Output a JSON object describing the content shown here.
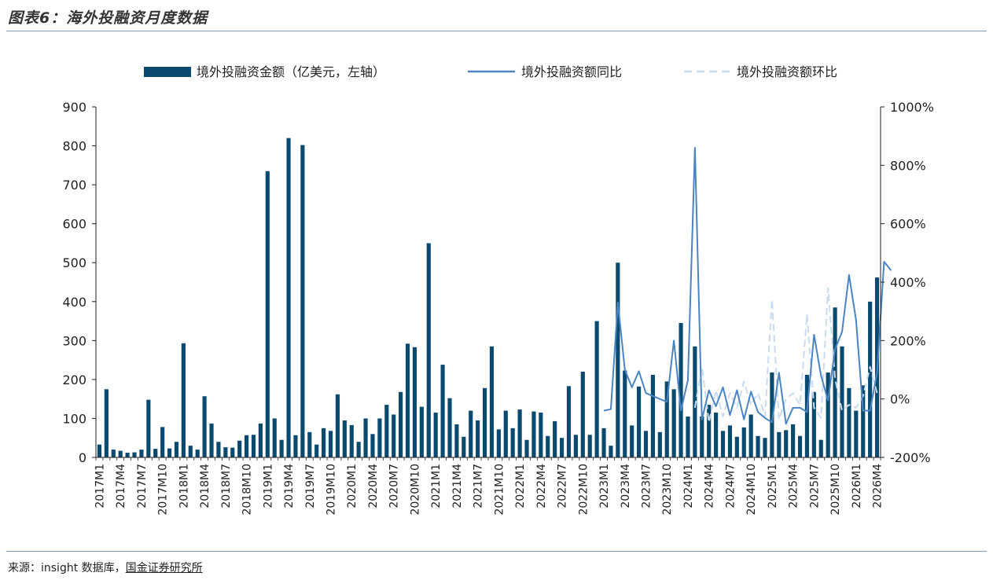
{
  "title": "图表6：海外投融资月度数据",
  "source": {
    "prefix": "来源：insight 数据库，",
    "org": "国金证券研究所"
  },
  "colors": {
    "bar": "#0b4a6f",
    "yoy": "#4a85c2",
    "mom": "#c9dcef",
    "axis": "#222222"
  },
  "chart_data": {
    "type": "bar",
    "legend_position": "top",
    "grid": false,
    "legend": {
      "bar": "境外投融资金额（亿美元，左轴）",
      "yoy": "境外投融资额同比",
      "mom": "境外投融资额环比"
    },
    "y_left": {
      "min": 0,
      "max": 900,
      "ticks": [
        "0",
        "100",
        "200",
        "300",
        "400",
        "500",
        "600",
        "700",
        "800",
        "900"
      ]
    },
    "y_right": {
      "min": -200,
      "max": 1000,
      "ticks": [
        "-200%",
        "0%",
        "200%",
        "400%",
        "600%",
        "800%",
        "1000%"
      ]
    },
    "x_tick_labels": [
      "2017M1",
      "2017M4",
      "2017M7",
      "2017M10",
      "2018M1",
      "2018M4",
      "2018M7",
      "2018M10",
      "2019M1",
      "2019M4",
      "2019M7",
      "2019M10",
      "2020M1",
      "2020M4",
      "2020M7",
      "2020M10",
      "2021M1",
      "2021M4",
      "2021M7",
      "2021M10",
      "2022M1",
      "2022M4",
      "2022M7",
      "2022M10",
      "2023M1",
      "2023M4",
      "2023M7",
      "2023M10",
      "2024M1",
      "2024M4",
      "2024M7",
      "2024M10",
      "2025M1",
      "2025M4",
      "2025M7",
      "2025M10",
      "2026M1",
      "2026M4"
    ],
    "series": [
      {
        "key": "bar",
        "values": [
          33,
          175,
          20,
          17,
          12,
          13,
          20,
          148,
          22,
          78,
          23,
          40,
          293,
          30,
          20,
          157,
          87,
          40,
          26,
          25,
          43,
          57,
          58,
          87,
          735,
          100,
          45,
          820,
          57,
          802,
          65,
          33,
          75,
          68,
          162,
          95,
          83,
          40,
          100,
          60,
          100,
          135,
          110,
          168,
          292,
          283,
          130,
          550,
          115,
          238,
          152,
          85,
          53,
          120,
          95,
          178,
          285,
          72,
          120,
          75,
          123,
          45,
          118,
          115,
          55,
          93,
          50,
          183,
          58,
          220,
          58,
          350,
          75,
          30,
          500,
          223,
          82,
          182,
          68,
          212,
          65,
          195,
          175,
          345,
          105,
          285,
          105,
          135,
          115,
          68,
          82,
          53,
          77,
          110,
          55,
          50,
          218,
          65,
          70,
          85,
          55,
          212,
          168,
          45,
          218,
          385,
          285,
          178,
          120,
          185,
          400,
          462
        ]
      },
      {
        "key": "yoy",
        "values": [
          null,
          null,
          null,
          null,
          null,
          null,
          null,
          null,
          null,
          null,
          null,
          null,
          null,
          null,
          null,
          null,
          null,
          null,
          null,
          null,
          null,
          null,
          null,
          null,
          null,
          null,
          null,
          null,
          null,
          null,
          null,
          null,
          null,
          null,
          null,
          null,
          null,
          null,
          null,
          null,
          null,
          null,
          null,
          null,
          null,
          null,
          null,
          null,
          null,
          null,
          null,
          null,
          null,
          null,
          null,
          null,
          null,
          null,
          null,
          null,
          null,
          null,
          null,
          null,
          null,
          null,
          null,
          null,
          null,
          null,
          null,
          null,
          -40,
          -35,
          330,
          100,
          40,
          95,
          20,
          10,
          0,
          -10,
          200,
          -40,
          65,
          860,
          -70,
          30,
          -25,
          40,
          -55,
          30,
          -70,
          25,
          -45,
          -65,
          -80,
          90,
          -85,
          -30,
          -30,
          -45,
          220,
          80,
          -5,
          170,
          230,
          425,
          270,
          -40,
          -40,
          90,
          470,
          440
        ]
      },
      {
        "key": "mom",
        "values": [
          null,
          null,
          null,
          null,
          null,
          null,
          null,
          null,
          null,
          null,
          null,
          null,
          null,
          null,
          null,
          null,
          null,
          null,
          null,
          null,
          null,
          null,
          null,
          null,
          null,
          null,
          null,
          null,
          null,
          null,
          null,
          null,
          null,
          null,
          null,
          null,
          null,
          null,
          null,
          null,
          null,
          null,
          null,
          null,
          null,
          null,
          null,
          null,
          null,
          null,
          null,
          null,
          null,
          null,
          null,
          null,
          null,
          null,
          null,
          null,
          null,
          null,
          null,
          null,
          null,
          null,
          null,
          null,
          null,
          null,
          null,
          null,
          null,
          null,
          null,
          null,
          null,
          null,
          null,
          null,
          null,
          null,
          null,
          null,
          null,
          -30,
          110,
          -80,
          30,
          -60,
          20,
          -30,
          60,
          -20,
          20,
          -60,
          340,
          -70,
          0,
          20,
          -20,
          290,
          -30,
          -65,
          380,
          70,
          -40,
          -20,
          -30,
          10,
          110,
          20
        ]
      }
    ]
  }
}
